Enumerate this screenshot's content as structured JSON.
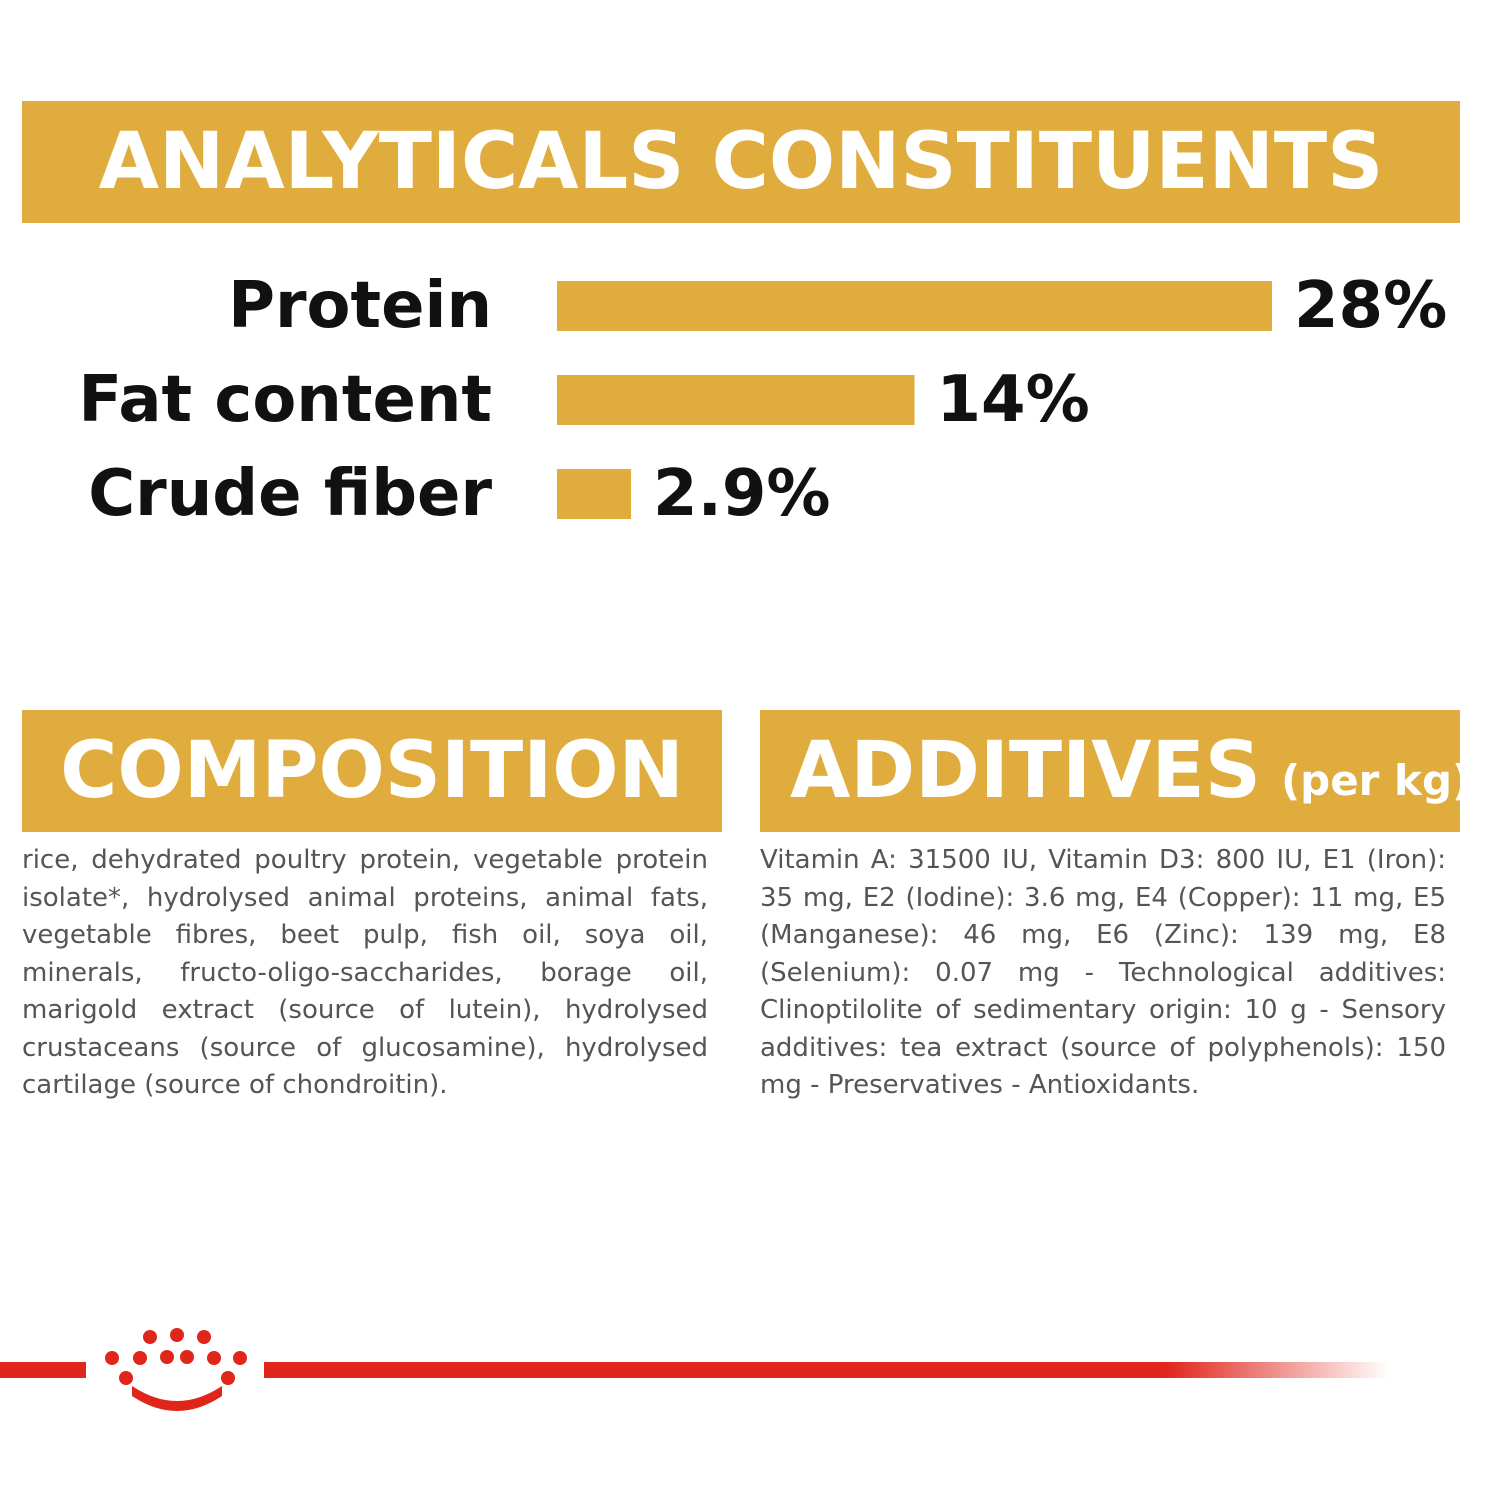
{
  "headers": {
    "analytical": "ANALYTICALS CONSTITUENTS",
    "composition": "COMPOSITION",
    "additives": "ADDITIVES",
    "additives_suffix": "(per kg)"
  },
  "chart_data": {
    "type": "bar",
    "orientation": "horizontal",
    "title": "ANALYTICALS CONSTITUENTS",
    "categories": [
      "Protein",
      "Fat content",
      "Crude fiber"
    ],
    "values": [
      28,
      14,
      2.9
    ],
    "value_labels": [
      "28%",
      "14%",
      "2.9%"
    ],
    "unit": "%",
    "xlim": [
      0,
      28
    ],
    "grid": false,
    "bar_color": "#dfac3d"
  },
  "composition_text": "rice, dehydrated poultry protein, vegetable protein isolate*, hydrolysed animal proteins, animal fats, vegetable fibres, beet pulp, fish oil, soya oil, minerals, fructo-oligo-saccharides, borage oil, marigold extract (source of lutein), hydrolysed crustaceans (source of glucosamine), hydrolysed cartilage (source of chondroitin).",
  "additives_text": "Vitamin A: 31500 IU, Vitamin D3: 800 IU, E1 (Iron): 35 mg, E2 (Iodine): 3.6 mg, E4 (Copper): 11 mg, E5 (Manganese): 46 mg, E6 (Zinc): 139 mg, E8 (Selenium): 0.07 mg - Technological additives: Clinoptilolite of sedimentary origin: 10 g - Sensory additives: tea extract (source of polyphenols): 150 mg - Preservatives - Antioxidants.",
  "colors": {
    "accent": "#dfac3d",
    "brand_red": "#e0251b",
    "text_dark": "#111111",
    "text_body": "#555555"
  },
  "logo": "royal-crown-logo"
}
